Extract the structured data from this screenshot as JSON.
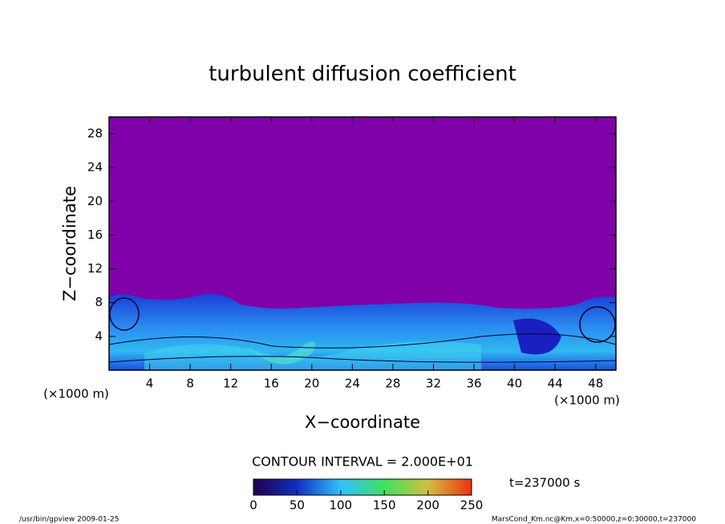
{
  "chart_data": {
    "type": "contour",
    "title": "turbulent diffusion coefficient",
    "xlabel": "X−coordinate",
    "ylabel": "Z−coordinate",
    "axis_unit": "(×1000 m)",
    "xlim": [
      0,
      50
    ],
    "xticks": [
      4,
      8,
      12,
      16,
      20,
      24,
      28,
      32,
      36,
      40,
      44,
      48
    ],
    "ylim": [
      0,
      30
    ],
    "yticks": [
      4,
      8,
      12,
      16,
      20,
      24,
      28
    ],
    "contour_interval": "CONTOUR INTERVAL = 2.000E+01",
    "time_label": "t=237000 s",
    "colorbar": {
      "lim": [
        0,
        250
      ],
      "ticks": [
        0,
        50,
        100,
        150,
        200,
        250
      ]
    },
    "footer_left": "/usr/bin/gpview  2009-01-25",
    "footer_right": "MarsCond_Km.nc@Km,x=0:50000,z=0:30000,t=237000"
  }
}
